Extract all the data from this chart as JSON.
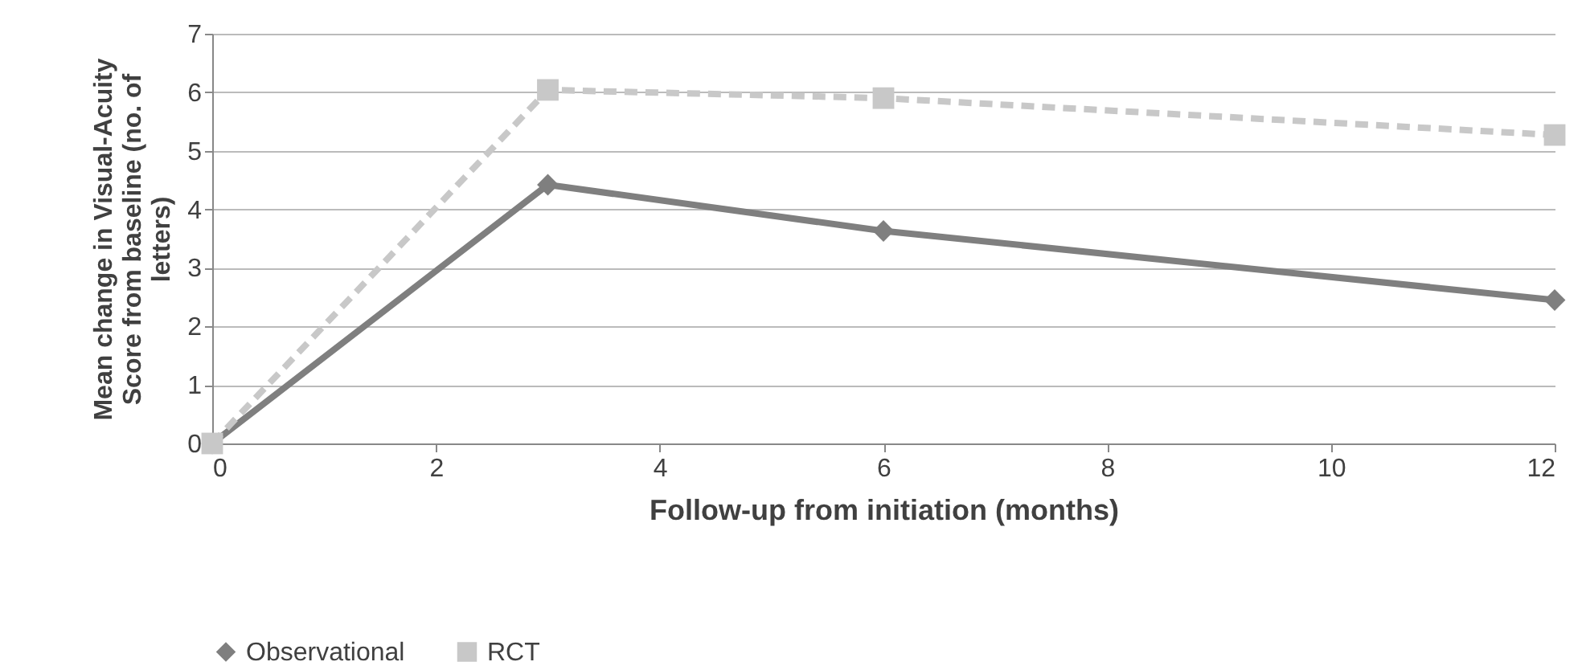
{
  "chart_data": {
    "type": "line",
    "xlabel": "Follow-up from initiation (months)",
    "ylabel": "Mean change in Visual-Acuity Score from baseline (no. of letters)",
    "x": [
      0,
      3,
      6,
      12
    ],
    "series": [
      {
        "name": "Observational",
        "color": "#7f7f7f",
        "values": [
          0,
          4.42,
          3.63,
          2.45
        ],
        "marker": "diamond",
        "line_style": "solid"
      },
      {
        "name": "RCT",
        "color": "#c8c8c8",
        "values": [
          0,
          6.04,
          5.9,
          5.27
        ],
        "marker": "square",
        "line_style": "dashed"
      }
    ],
    "xlim": [
      0,
      12
    ],
    "xticks": [
      0,
      2,
      4,
      6,
      8,
      10,
      12
    ],
    "ylim": [
      0,
      7
    ],
    "yticks": [
      0,
      1,
      2,
      3,
      4,
      5,
      6,
      7
    ],
    "grid": "y",
    "legend": "bottom"
  }
}
